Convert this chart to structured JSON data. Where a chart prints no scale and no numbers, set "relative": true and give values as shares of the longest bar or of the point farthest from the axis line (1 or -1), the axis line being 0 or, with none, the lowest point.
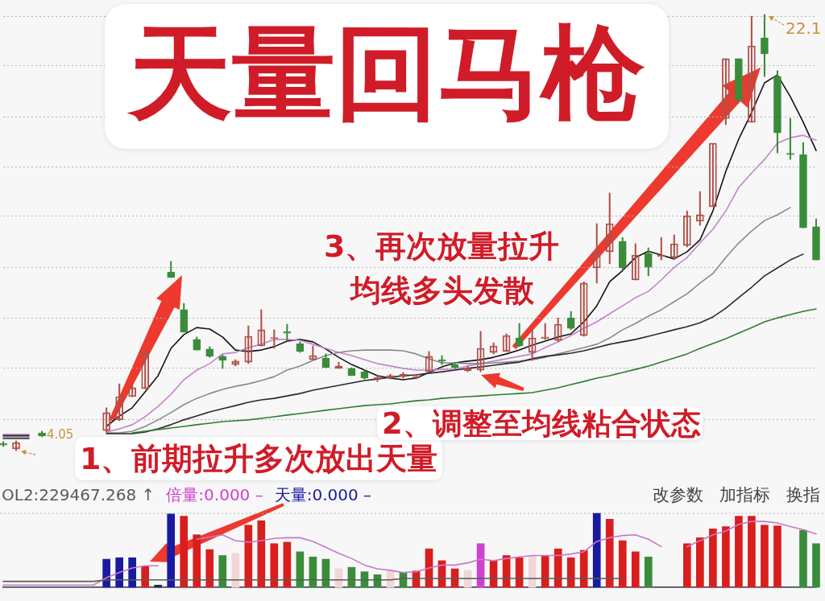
{
  "chart_data": [
    {
      "type": "candlestick",
      "title": "天量回马枪",
      "categories": [
        null,
        null,
        null,
        null,
        null,
        null,
        null,
        null,
        null,
        null,
        null,
        null,
        null,
        null,
        null,
        null,
        null,
        null,
        null,
        null,
        null,
        null,
        null,
        null,
        null,
        null,
        null,
        null,
        null,
        null,
        null,
        null,
        null,
        null,
        null,
        null,
        null,
        null,
        null,
        null,
        null,
        null,
        null,
        null,
        null,
        null,
        null,
        null,
        null,
        null,
        null,
        null,
        null,
        null,
        null,
        null,
        null,
        null,
        null,
        null,
        null,
        null,
        null,
        null
      ],
      "ohlc": [
        [
          4.35,
          4.42,
          4.22,
          4.28
        ],
        [
          4.12,
          4.45,
          4.05,
          4.38
        ],
        null,
        [
          4.78,
          4.85,
          4.62,
          4.65
        ],
        null,
        null,
        null,
        null,
        [
          4.88,
          5.82,
          4.82,
          5.62
        ],
        [
          5.32,
          6.81,
          5.28,
          6.28
        ],
        [
          6.28,
          6.78,
          6.28,
          6.65
        ],
        [
          6.61,
          8.15,
          6.61,
          8.15
        ],
        null,
        [
          11.44,
          11.88,
          11.21,
          11.21
        ],
        [
          9.88,
          10.14,
          8.95,
          8.95
        ],
        [
          8.65,
          8.75,
          8.21,
          8.21
        ],
        [
          8.25,
          8.35,
          7.91,
          7.95
        ],
        [
          7.95,
          8.01,
          7.45,
          7.78
        ],
        [
          7.61,
          7.81,
          7.55,
          7.75
        ],
        [
          7.71,
          9.21,
          7.65,
          8.78
        ],
        [
          8.38,
          9.88,
          8.38,
          9.05
        ],
        [
          8.68,
          9.05,
          8.28,
          8.71
        ],
        [
          8.98,
          9.28,
          8.61,
          8.91
        ],
        [
          8.48,
          8.55,
          8.11,
          8.15
        ],
        [
          7.81,
          8.38,
          7.81,
          7.98
        ],
        [
          7.88,
          8.05,
          7.48,
          7.48
        ],
        [
          7.45,
          7.71,
          7.45,
          7.55
        ],
        [
          7.45,
          7.48,
          7.15,
          7.15
        ],
        [
          7.31,
          7.38,
          7.01,
          7.05
        ],
        [
          7.01,
          7.18,
          6.91,
          7.08
        ],
        [
          7.05,
          7.21,
          7.01,
          7.15
        ],
        [
          7.11,
          7.28,
          7.05,
          7.21
        ],
        [
          7.05,
          7.21,
          7.01,
          7.11
        ],
        [
          7.31,
          8.15,
          7.28,
          7.95
        ],
        [
          7.81,
          7.98,
          7.61,
          7.75
        ],
        [
          7.61,
          7.68,
          7.45,
          7.48
        ],
        [
          7.35,
          7.55,
          7.31,
          7.45
        ],
        [
          7.38,
          8.98,
          7.31,
          8.28
        ],
        [
          8.11,
          8.51,
          8.05,
          8.38
        ],
        [
          8.15,
          8.88,
          8.15,
          8.81
        ],
        [
          8.71,
          9.31,
          8.35,
          8.38
        ],
        [
          8.11,
          9.11,
          7.78,
          8.71
        ],
        [
          8.68,
          9.31,
          8.65,
          8.75
        ],
        [
          8.61,
          9.54,
          8.55,
          9.28
        ],
        [
          9.54,
          9.81,
          9.05,
          9.11
        ],
        [
          8.81,
          11.04,
          8.78,
          10.98
        ],
        [
          11.61,
          13.44,
          10.98,
          12.28
        ],
        [
          12.28,
          14.71,
          11.78,
          13.44
        ],
        [
          12.71,
          12.87,
          11.54,
          11.61
        ],
        [
          11.11,
          12.61,
          11.11,
          12.14
        ],
        [
          12.21,
          12.44,
          11.28,
          11.64
        ],
        [
          12.08,
          12.87,
          11.94,
          12.11
        ],
        [
          12.04,
          12.97,
          11.98,
          12.61
        ],
        [
          12.54,
          13.97,
          12.48,
          13.77
        ],
        [
          13.54,
          14.77,
          13.37,
          13.81
        ],
        [
          14.14,
          16.77,
          14.14,
          16.77
        ],
        [
          17.8,
          20.27,
          17.54,
          20.27
        ],
        [
          20.27,
          20.27,
          18.54,
          18.54
        ],
        [
          17.64,
          22.03,
          17.64,
          20.8
        ],
        [
          21.13,
          22.1,
          19.53,
          20.47
        ],
        [
          19.53,
          19.77,
          16.37,
          17.2
        ],
        [
          16.34,
          17.8,
          16.1,
          16.3
        ],
        [
          16.3,
          16.8,
          13.27,
          13.27
        ],
        [
          13.31,
          13.64,
          11.94,
          11.94
        ]
      ],
      "colors": [
        "#3a8c3a",
        "#b0504a",
        null,
        "#3a8c3a",
        null,
        null,
        null,
        null,
        "#b0504a",
        "#b0504a",
        "#b0504a",
        "#b0504a",
        null,
        "#3a8c3a",
        "#3a8c3a",
        "#3a8c3a",
        "#3a8c3a",
        "#3a8c3a",
        "#b0504a",
        "#b0504a",
        "#b0504a",
        "#b0504a",
        "#3a8c3a",
        "#3a8c3a",
        "#b0504a",
        "#3a8c3a",
        "#b0504a",
        "#3a8c3a",
        "#3a8c3a",
        "#b0504a",
        "#b0504a",
        "#b0504a",
        "#b0504a",
        "#b0504a",
        "#3a8c3a",
        "#3a8c3a",
        "#b0504a",
        "#b0504a",
        "#b0504a",
        "#b0504a",
        "#3a8c3a",
        "#b0504a",
        "#b0504a",
        "#b0504a",
        "#3a8c3a",
        "#b0504a",
        "#b0504a",
        "#b0504a",
        "#3a8c3a",
        "#b0504a",
        "#3a8c3a",
        "#b0504a",
        "#b0504a",
        "#b0504a",
        "#b0504a",
        "#b0504a",
        "#b0504a",
        "#3a8c3a",
        "#b0504a",
        "#3a8c3a",
        "#3a8c3a",
        "#3a8c3a",
        "#3a8c3a",
        "#3a8c3a"
      ],
      "series": [
        {
          "type": "line",
          "color": "#2e7d32",
          "values": [
            null,
            null,
            null,
            null,
            null,
            null,
            null,
            null,
            null,
            null,
            4.78,
            4.85,
            4.92,
            4.98,
            5.05,
            5.12,
            5.18,
            5.25,
            5.28,
            5.32,
            5.38,
            5.45,
            5.52,
            5.58,
            5.65,
            5.72,
            5.78,
            5.85,
            5.91,
            5.95,
            5.98,
            6.05,
            6.11,
            6.15,
            6.21,
            6.25,
            6.28,
            6.31,
            6.35,
            6.38,
            6.41,
            6.45,
            6.55,
            6.65,
            6.78,
            6.91,
            7.05,
            7.15,
            7.28,
            7.41,
            7.55,
            7.71,
            7.88,
            8.05,
            8.28,
            8.48,
            8.68,
            8.91,
            9.14,
            9.38,
            9.54,
            9.68,
            9.81,
            9.91
          ]
        },
        {
          "type": "line",
          "color": "#2a2a2a",
          "values": [
            4.55,
            4.55,
            4.55,
            null,
            null,
            null,
            null,
            null,
            4.75,
            4.75,
            4.75,
            4.82,
            4.95,
            5.12,
            5.32,
            5.48,
            5.65,
            5.78,
            5.91,
            6.05,
            6.15,
            6.21,
            6.31,
            6.41,
            6.55,
            6.65,
            6.75,
            6.85,
            6.95,
            7.01,
            7.08,
            7.15,
            7.18,
            7.25,
            7.31,
            7.38,
            7.45,
            7.51,
            7.58,
            7.65,
            7.71,
            7.85,
            7.95,
            8.01,
            8.08,
            8.18,
            8.31,
            8.45,
            8.55,
            8.65,
            8.78,
            8.91,
            9.05,
            9.18,
            9.34,
            9.58,
            9.94,
            10.38,
            10.81,
            11.28,
            11.61,
            11.94,
            12.18,
            null
          ]
        },
        {
          "type": "line",
          "color": "#8a8a8a",
          "values": [
            4.62,
            4.62,
            4.62,
            null,
            null,
            null,
            null,
            null,
            4.78,
            4.78,
            4.85,
            5.05,
            5.32,
            5.62,
            5.95,
            6.21,
            6.41,
            6.58,
            6.71,
            6.81,
            6.95,
            7.11,
            7.38,
            7.55,
            7.78,
            7.98,
            8.11,
            8.18,
            8.21,
            8.21,
            8.21,
            8.18,
            8.05,
            7.85,
            7.68,
            7.68,
            7.65,
            7.65,
            7.68,
            7.71,
            7.75,
            7.81,
            7.91,
            8.05,
            8.18,
            8.31,
            8.45,
            8.71,
            9.05,
            9.31,
            9.61,
            9.88,
            10.21,
            10.54,
            10.98,
            11.38,
            12.04,
            12.64,
            13.14,
            13.57,
            13.81,
            14.11,
            null,
            null
          ]
        },
        {
          "type": "line",
          "color": "#c484cc",
          "values": [
            4.72,
            4.72,
            4.72,
            null,
            null,
            null,
            null,
            null,
            4.82,
            4.95,
            5.12,
            5.45,
            5.88,
            6.38,
            6.98,
            7.38,
            7.65,
            8.05,
            8.11,
            8.31,
            8.45,
            8.65,
            8.65,
            8.61,
            8.45,
            8.28,
            8.11,
            7.98,
            7.81,
            7.65,
            7.55,
            7.45,
            7.38,
            7.38,
            7.41,
            7.42,
            7.55,
            7.65,
            7.75,
            7.85,
            7.95,
            8.05,
            8.31,
            8.55,
            8.81,
            9.11,
            9.38,
            9.71,
            10.04,
            10.38,
            10.64,
            11.11,
            11.64,
            12.04,
            12.64,
            13.21,
            13.97,
            14.94,
            15.54,
            16.1,
            16.77,
            17.0,
            17.1,
            16.9
          ]
        },
        {
          "type": "line",
          "color": "#141414",
          "values": [
            4.68,
            4.68,
            4.68,
            null,
            null,
            null,
            null,
            null,
            5.05,
            5.48,
            5.82,
            6.48,
            7.15,
            8.28,
            8.85,
            9.14,
            9.08,
            8.75,
            8.21,
            8.15,
            8.21,
            8.35,
            8.58,
            8.65,
            8.55,
            8.25,
            7.91,
            7.61,
            7.38,
            7.15,
            7.05,
            6.98,
            7.05,
            7.28,
            7.51,
            7.68,
            7.75,
            7.81,
            7.91,
            8.05,
            8.21,
            8.41,
            8.58,
            8.75,
            8.88,
            9.38,
            10.04,
            11.04,
            11.5,
            12.04,
            12.3,
            12.14,
            11.98,
            12.28,
            12.77,
            13.97,
            15.61,
            16.94,
            18.04,
            19.27,
            19.6,
            18.7,
            17.64,
            16.47
          ]
        }
      ],
      "grid": "y",
      "yticks": [
        {
          "value": 5.32,
          "label": null
        },
        {
          "value": 7.48,
          "label": null
        },
        {
          "value": 9.54,
          "label": null
        },
        {
          "value": 11.61,
          "label": null
        },
        {
          "value": 13.77,
          "label": null
        },
        {
          "value": 15.8,
          "label": null
        },
        {
          "value": 17.87,
          "label": null
        },
        {
          "value": 19.97,
          "label": null
        },
        {
          "value": 22.03,
          "label": null
        }
      ],
      "annotations": [
        "1、前期拉升多次放出天量",
        "2、调整至均线粘合状态",
        "3、再次放量拉升",
        "均线多头发散",
        "22.1",
        "4.05"
      ]
    },
    {
      "type": "bar",
      "relative": true,
      "categories": [
        null,
        null,
        null,
        null,
        null,
        null,
        null,
        null,
        null,
        null,
        null,
        null,
        null,
        null,
        null,
        null,
        null,
        null,
        null,
        null,
        null,
        null,
        null,
        null,
        null,
        null,
        null,
        null,
        null,
        null,
        null,
        null,
        null,
        null,
        null,
        null,
        null,
        null,
        null,
        null,
        null,
        null,
        null,
        null,
        null,
        null,
        null,
        null,
        null,
        null,
        null,
        null,
        null,
        null,
        null,
        null,
        null,
        null,
        null,
        null,
        null,
        null,
        null,
        null
      ],
      "series": [
        {
          "type": "line",
          "name": "OL2:229467.268 ↑",
          "color": "#5a5a5a",
          "values": [
            0.08,
            0.08,
            0.08,
            0.08,
            0.08,
            0.08,
            0.08,
            0.08,
            0.1,
            0.1,
            0.1,
            0.1,
            0.1,
            0.1,
            0.1,
            0.1,
            0.1,
            0.1,
            0.1,
            0.1,
            0.1,
            0.1,
            0.1,
            0.1,
            0.1,
            0.1,
            0.1,
            0.1,
            0.1,
            0.1,
            0.1,
            0.12,
            0.12,
            0.12,
            0.12,
            0.12,
            0.12,
            0.12,
            0.12,
            0.12,
            0.12,
            0.12,
            0.12,
            0.12,
            0.12,
            0.12,
            0.12,
            0.12,
            0.12,
            null,
            null,
            null,
            null,
            null,
            null,
            null,
            null,
            null,
            null,
            null,
            null,
            null,
            null,
            null
          ]
        },
        {
          "name": "倍量:0.000 –",
          "color": "#d040d0",
          "values": [
            null,
            null,
            null,
            null,
            null,
            null,
            null,
            null,
            null,
            null,
            null,
            null,
            null,
            null,
            null,
            null,
            null,
            null,
            null,
            null,
            null,
            null,
            null,
            null,
            null,
            null,
            null,
            null,
            null,
            null,
            null,
            null,
            null,
            null,
            null,
            null,
            null,
            0.59,
            null,
            null,
            null,
            null,
            null,
            null,
            null,
            null,
            null,
            null,
            null,
            null,
            null,
            null,
            null,
            null,
            null,
            null,
            null,
            null,
            null,
            null,
            null,
            null,
            null,
            null
          ]
        },
        {
          "name": "天量:0.000 –",
          "color": "#1a1aa0",
          "values": [
            null,
            null,
            null,
            null,
            null,
            null,
            null,
            null,
            0.38,
            0.4,
            0.4,
            null,
            null,
            0.99,
            null,
            null,
            null,
            null,
            null,
            null,
            null,
            null,
            null,
            null,
            null,
            null,
            null,
            null,
            null,
            null,
            null,
            null,
            null,
            null,
            null,
            null,
            null,
            null,
            null,
            null,
            null,
            null,
            null,
            null,
            null,
            null,
            1,
            null,
            null,
            null,
            null,
            null,
            null,
            null,
            null,
            null,
            null,
            null,
            null,
            null,
            null,
            null,
            null,
            null
          ]
        },
        {
          "values": [
            null,
            null,
            null,
            null,
            null,
            null,
            null,
            null,
            null,
            null,
            null,
            0.29,
            0.03,
            null,
            0.96,
            0.71,
            0.51,
            0.43,
            0.46,
            0.84,
            0.9,
            0.59,
            0.61,
            0.48,
            0.41,
            0.38,
            0.25,
            0.27,
            0.21,
            0.17,
            0.23,
            0.2,
            0.22,
            0.52,
            0.36,
            0.25,
            0.23,
            null,
            0.36,
            0.43,
            0.4,
            0.42,
            0.43,
            0.52,
            0.4,
            0.5,
            null,
            0.92,
            0.63,
            0.48,
            0.41,
            null,
            null,
            0.59,
            0.67,
            0.79,
            0.82,
            0.96,
            0.96,
            0.84,
            0.83,
            null,
            0.77,
            0.59
          ],
          "colors": [
            null,
            null,
            null,
            null,
            null,
            null,
            null,
            null,
            null,
            null,
            null,
            "#d91e1e",
            "#2a2a40",
            null,
            "#d91e1e",
            "#d91e1e",
            "#d91e1e",
            "#3a8c3a",
            "#f0d6d6",
            "#d91e1e",
            "#d91e1e",
            "#d91e1e",
            "#d91e1e",
            "#3a8c3a",
            "#3a8c3a",
            "#3a8c3a",
            "#f0d6d6",
            "#3a8c3a",
            "#3a8c3a",
            "#3a8c3a",
            "#f0d6d6",
            "#3a8c3a",
            "#d91e1e",
            "#d91e1e",
            "#d91e1e",
            "#d91e1e",
            "#f0d6d6",
            null,
            "#d91e1e",
            "#d91e1e",
            "#d91e1e",
            "#f0d6d6",
            "#d91e1e",
            "#d91e1e",
            "#d91e1e",
            "#d91e1e",
            null,
            "#d91e1e",
            "#d91e1e",
            "#d91e1e",
            "#3a8c3a",
            null,
            null,
            "#d91e1e",
            "#d91e1e",
            "#d91e1e",
            "#d91e1e",
            "#d91e1e",
            "#d91e1e",
            "#d91e1e",
            "#d91e1e",
            null,
            "#3a8c3a",
            "#3a8c3a"
          ]
        },
        {
          "type": "line",
          "color": "#c878c8",
          "values": [
            0.03,
            0.03,
            0.03,
            0.03,
            0.03,
            0.03,
            0.03,
            0.03,
            0.13,
            0.2,
            0.26,
            0.29,
            0.29,
            null,
            null,
            0.65,
            0.68,
            0.71,
            0.63,
            0.61,
            0.63,
            0.66,
            0.67,
            0.67,
            0.62,
            0.54,
            0.46,
            0.39,
            0.3,
            0.25,
            0.23,
            0.2,
            0.21,
            0.26,
            0.3,
            0.3,
            0.33,
            0.38,
            0.36,
            0.39,
            0.41,
            0.43,
            0.43,
            0.43,
            0.45,
            0.48,
            0.62,
            0.67,
            0.7,
            0.71,
            0.65,
            0.55,
            null,
            0.55,
            0.63,
            0.71,
            0.76,
            0.85,
            0.89,
            0.89,
            0.87,
            0.82,
            0.78,
            0.72
          ]
        }
      ],
      "legend": "top left",
      "annotations": [
        "改参数",
        "加指标",
        "换指"
      ]
    }
  ]
}
